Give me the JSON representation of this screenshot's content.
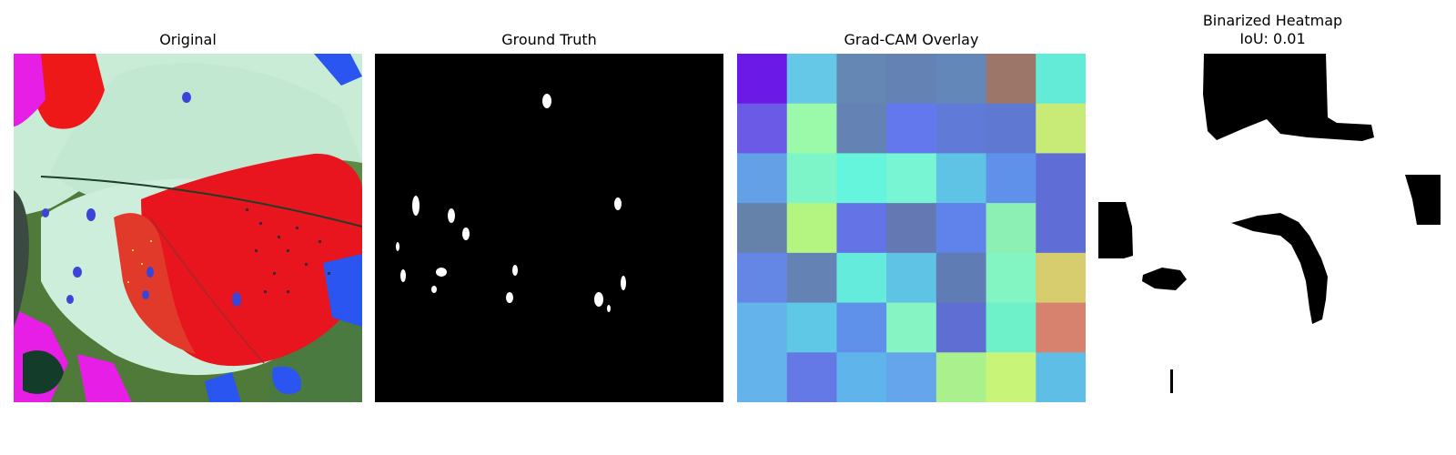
{
  "panels": [
    {
      "title": "Original"
    },
    {
      "title": "Ground Truth"
    },
    {
      "title": "Grad-CAM Overlay"
    },
    {
      "title": "Binarized Heatmap",
      "subtitle": "IoU: 0.01"
    }
  ],
  "colors": {
    "leaf_pale": "#c9ecd6",
    "leaf_red": "#e8141e",
    "magenta": "#e61ee6",
    "background_green": "#4f7a3a",
    "blue_patch": "#2a55f0",
    "mask_black": "#000000",
    "mask_white": "#ffffff"
  },
  "gradcam_grid": [
    [
      "#6a19e6",
      "#64c8e6",
      "#6487b4",
      "#6482b4",
      "#6487b9",
      "#9b7669",
      "#64ebd7"
    ],
    [
      "#6a5ae6",
      "#9bfaaa",
      "#6482b4",
      "#6478ee",
      "#5f7ad7",
      "#5f78d2",
      "#c8eb78"
    ],
    [
      "#64a0e6",
      "#7df5c8",
      "#64f5dc",
      "#78f5d2",
      "#5fc3e6",
      "#5f91eb",
      "#5f6ed7"
    ],
    [
      "#6482aa",
      "#b4f582",
      "#6473e6",
      "#6478b4",
      "#5f82eb",
      "#8cf0b4",
      "#5f6ed7"
    ],
    [
      "#6487e6",
      "#6482b4",
      "#64ebdc",
      "#5fc3e6",
      "#5f7db4",
      "#82f5c3",
      "#d7cd6e"
    ],
    [
      "#64b4eb",
      "#5fc8e6",
      "#5f91eb",
      "#87f5c3",
      "#5f6ed2",
      "#6ef0c8",
      "#d7826e"
    ],
    [
      "#64b4eb",
      "#6478e6",
      "#5fb4eb",
      "#64a5eb",
      "#aaf08c",
      "#c8f578",
      "#5fbee6"
    ]
  ]
}
